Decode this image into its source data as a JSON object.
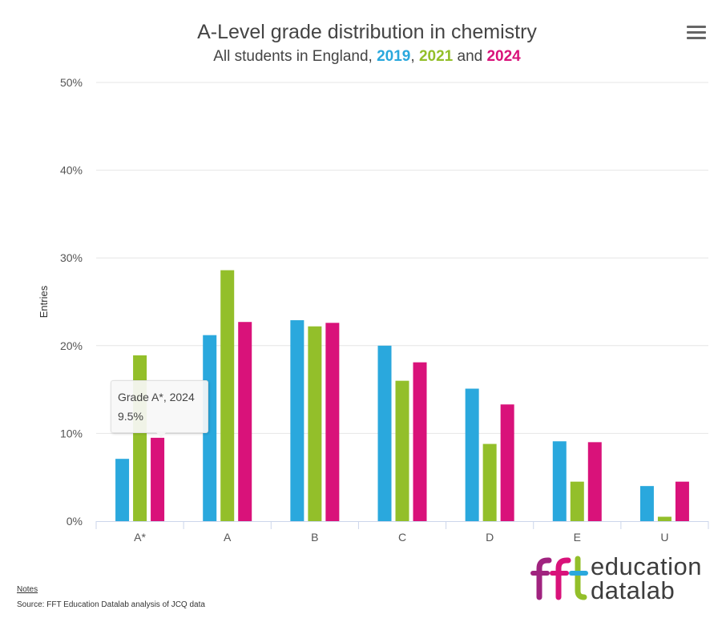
{
  "chart_data": {
    "type": "bar",
    "title": "A-Level grade distribution in chemistry",
    "subtitle": {
      "prefix": "All students in England, ",
      "sep1": ", ",
      "sep2": " and "
    },
    "categories": [
      "A*",
      "A",
      "B",
      "C",
      "D",
      "E",
      "U"
    ],
    "series": [
      {
        "name": "2019",
        "color": "#2aa8dd",
        "values": [
          7.1,
          21.2,
          22.9,
          20.0,
          15.1,
          9.1,
          4.0
        ]
      },
      {
        "name": "2021",
        "color": "#93bf2a",
        "values": [
          18.9,
          28.6,
          22.2,
          16.0,
          8.8,
          4.5,
          0.5
        ]
      },
      {
        "name": "2024",
        "color": "#d9127a",
        "values": [
          9.5,
          22.7,
          22.6,
          18.1,
          13.3,
          9.0,
          4.5
        ]
      }
    ],
    "ylabel": "Entries",
    "xlabel": "",
    "ylim": [
      0,
      50
    ],
    "yticks": [
      "0%",
      "10%",
      "20%",
      "30%",
      "40%",
      "50%"
    ],
    "grid": true
  },
  "tooltip": {
    "title": "Grade A*, 2024",
    "value": "9.5%"
  },
  "footer": {
    "notes": "Notes",
    "source": "Source: FFT Education Datalab analysis of JCQ data"
  },
  "logo": {
    "mark": "fft",
    "line1": "education",
    "line2": "datalab",
    "colors": {
      "purple": "#a0237f",
      "pink": "#d9127a",
      "green": "#93bf2a",
      "blue": "#2aa8dd"
    }
  }
}
